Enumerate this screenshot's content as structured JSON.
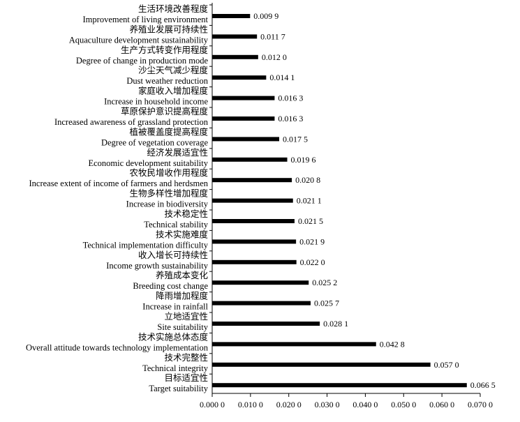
{
  "chart_data": {
    "type": "bar",
    "orientation": "horizontal",
    "categories": [
      {
        "zh": "生活环境改善程度",
        "en": "Improvement of living environment"
      },
      {
        "zh": "养殖业发展可持续性",
        "en": "Aquaculture development sustainability"
      },
      {
        "zh": "生产方式转变作用程度",
        "en": "Degree of change in production mode"
      },
      {
        "zh": "沙尘天气减少程度",
        "en": "Dust weather reduction"
      },
      {
        "zh": "家庭收入增加程度",
        "en": "Increase in household income"
      },
      {
        "zh": "草原保护意识提高程度",
        "en": "Increased awareness of grassland protection"
      },
      {
        "zh": "植被覆盖度提高程度",
        "en": "Degree of vegetation coverage"
      },
      {
        "zh": "经济发展适宜性",
        "en": "Economic development suitability"
      },
      {
        "zh": "农牧民增收作用程度",
        "en": "Increase extent of income of farmers and herdsmen"
      },
      {
        "zh": "生物多样性增加程度",
        "en": "Increase in biodiversity"
      },
      {
        "zh": "技术稳定性",
        "en": "Technical stability"
      },
      {
        "zh": "技术实施难度",
        "en": "Technical implementation difficulty"
      },
      {
        "zh": "收入增长可持续性",
        "en": "Income growth sustainability"
      },
      {
        "zh": "养殖成本变化",
        "en": "Breeding cost change"
      },
      {
        "zh": "降雨增加程度",
        "en": "Increase in rainfall"
      },
      {
        "zh": "立地适宜性",
        "en": "Site suitability"
      },
      {
        "zh": "技术实施总体态度",
        "en": "Overall attitude towards technology implementation"
      },
      {
        "zh": "技术完整性",
        "en": "Technical integrity"
      },
      {
        "zh": "目标适宜性",
        "en": "Target suitability"
      }
    ],
    "values": [
      0.0099,
      0.0117,
      0.012,
      0.0141,
      0.0163,
      0.0163,
      0.0175,
      0.0196,
      0.0208,
      0.0211,
      0.0215,
      0.0219,
      0.022,
      0.0252,
      0.0257,
      0.0281,
      0.0428,
      0.057,
      0.0665
    ],
    "value_labels": [
      "0.009 9",
      "0.011 7",
      "0.012 0",
      "0.014 1",
      "0.016 3",
      "0.016 3",
      "0.017 5",
      "0.019 6",
      "0.020 8",
      "0.021 1",
      "0.021 5",
      "0.021 9",
      "0.022 0",
      "0.025 2",
      "0.025 7",
      "0.028 1",
      "0.042 8",
      "0.057 0",
      "0.066 5"
    ],
    "xlim": [
      0,
      0.07
    ],
    "xticks": [
      0,
      0.01,
      0.02,
      0.03,
      0.04,
      0.05,
      0.06,
      0.07
    ],
    "xtick_labels": [
      "0.000 0",
      "0.010 0",
      "0.020 0",
      "0.030 0",
      "0.040 0",
      "0.050 0",
      "0.060 0",
      "0.070 0"
    ],
    "title": "",
    "xlabel": "",
    "ylabel": "",
    "grid": false,
    "legend": "none",
    "bar_color": "#000000"
  }
}
